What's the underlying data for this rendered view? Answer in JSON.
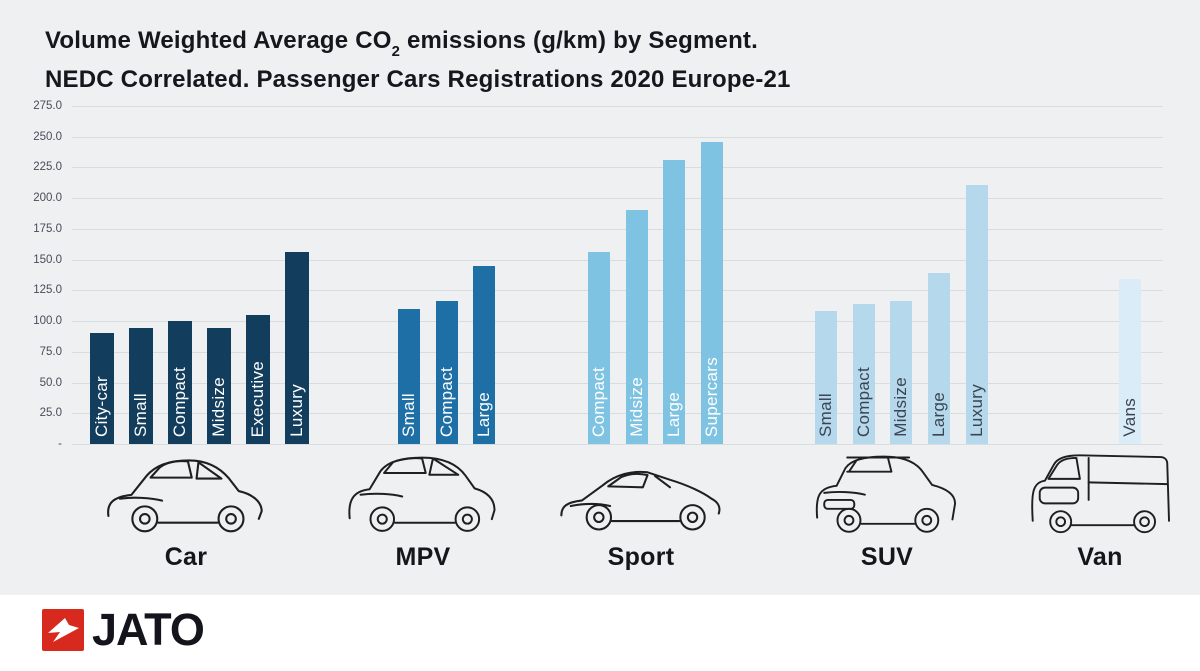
{
  "title": {
    "line1_prefix": "Volume Weighted Average CO",
    "line1_sub": "2",
    "line1_suffix": " emissions (g/km) by Segment.",
    "line2": "NEDC Correlated. Passenger Cars Registrations 2020 Europe-21"
  },
  "chart_data": {
    "type": "bar",
    "title": "Volume Weighted Average CO2 emissions (g/km) by Segment. NEDC Correlated. Passenger Cars Registrations 2020 Europe-21",
    "xlabel": "",
    "ylabel": "CO2 emissions (g/km)",
    "ylim": [
      0,
      275
    ],
    "ytick_step": 25,
    "grid": true,
    "legend_position": "none",
    "yticks": [
      {
        "value": 275,
        "label": "275.0"
      },
      {
        "value": 250,
        "label": "250.0"
      },
      {
        "value": 225,
        "label": "225.0"
      },
      {
        "value": 200,
        "label": "200.0"
      },
      {
        "value": 175,
        "label": "175.0"
      },
      {
        "value": 150,
        "label": "150.0"
      },
      {
        "value": 125,
        "label": "125.0"
      },
      {
        "value": 100,
        "label": "100.0"
      },
      {
        "value": 75,
        "label": "75.0"
      },
      {
        "value": 50,
        "label": "50.0"
      },
      {
        "value": 25,
        "label": "25.0"
      },
      {
        "value": 0,
        "label": "-"
      }
    ],
    "groups": [
      {
        "segment": "Car",
        "bar_color": "#123d5d",
        "label_color": "#ffffff",
        "bars": [
          {
            "label": "City-car",
            "value": 90
          },
          {
            "label": "Small",
            "value": 94
          },
          {
            "label": "Compact",
            "value": 100
          },
          {
            "label": "Midsize",
            "value": 94
          },
          {
            "label": "Executive",
            "value": 105
          },
          {
            "label": "Luxury",
            "value": 156
          }
        ]
      },
      {
        "segment": "MPV",
        "bar_color": "#1d6fa5",
        "label_color": "#ffffff",
        "bars": [
          {
            "label": "Small",
            "value": 110
          },
          {
            "label": "Compact",
            "value": 116
          },
          {
            "label": "Large",
            "value": 145
          }
        ]
      },
      {
        "segment": "Sport",
        "bar_color": "#7ec3e2",
        "label_color": "#ffffff",
        "bars": [
          {
            "label": "Compact",
            "value": 156
          },
          {
            "label": "Midsize",
            "value": 190
          },
          {
            "label": "Large",
            "value": 231
          },
          {
            "label": "Supercars",
            "value": 246
          }
        ]
      },
      {
        "segment": "SUV",
        "bar_color": "#b5d8ed",
        "label_color": "#3c4450",
        "bars": [
          {
            "label": "Small",
            "value": 108
          },
          {
            "label": "Compact",
            "value": 114
          },
          {
            "label": "Midsize",
            "value": 116
          },
          {
            "label": "Large",
            "value": 139
          },
          {
            "label": "Luxury",
            "value": 211
          }
        ]
      },
      {
        "segment": "Van",
        "bar_color": "#d9ecf7",
        "label_color": "#3c4450",
        "bars": [
          {
            "label": "Vans",
            "value": 134
          }
        ]
      }
    ]
  },
  "footer": {
    "logo_text": "JATO"
  },
  "colors": {
    "background": "#eef0f2",
    "footer_bg": "#ffffff",
    "grid": "#d9dcdf",
    "tick_text": "#474d56",
    "title_text": "#16161c",
    "segment_label": "#15151a",
    "line_art": "#1f1f1f",
    "logo_red": "#d7291e",
    "logo_text": "#14141d"
  }
}
